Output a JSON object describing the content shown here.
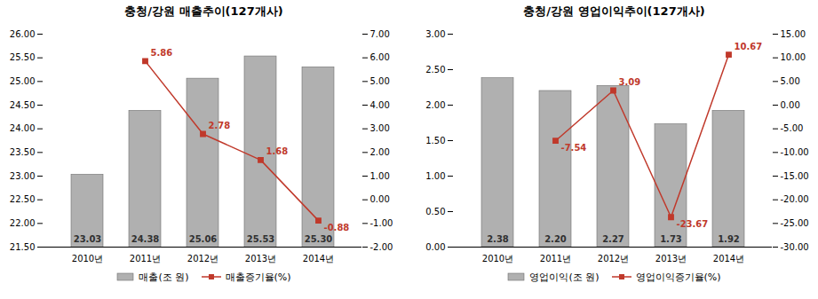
{
  "chart_data": [
    {
      "type": "bar",
      "title": "충청/강원  매출추이(127개사)",
      "categories": [
        "2010년",
        "2011년",
        "2012년",
        "2013년",
        "2014년"
      ],
      "series": [
        {
          "name": "매출(조 원)",
          "type": "bar",
          "color": "#b0b0b0",
          "values": [
            23.03,
            24.38,
            25.06,
            25.53,
            25.3
          ],
          "value_labels": [
            "23.03",
            "24.38",
            "25.06",
            "25.53",
            "25.30"
          ]
        },
        {
          "name": "매출증기율(%)",
          "type": "line",
          "axis": "y2",
          "color": "#c0392b",
          "marker": "square",
          "values": [
            null,
            5.86,
            2.78,
            1.68,
            -0.88
          ]
        }
      ],
      "ylim": [
        21.5,
        26.0
      ],
      "yticks": [
        {
          "value": 21.5,
          "label": "21.50"
        },
        {
          "value": 22.0,
          "label": "22.00"
        },
        {
          "value": 22.5,
          "label": "22.50"
        },
        {
          "value": 23.0,
          "label": "23.00"
        },
        {
          "value": 23.5,
          "label": "23.50"
        },
        {
          "value": 24.0,
          "label": "24.00"
        },
        {
          "value": 24.5,
          "label": "24.50"
        },
        {
          "value": 25.0,
          "label": "25.00"
        },
        {
          "value": 25.5,
          "label": "25.50"
        },
        {
          "value": 26.0,
          "label": "26.00"
        }
      ],
      "y2lim": [
        -2.0,
        7.0
      ],
      "y2ticks": [
        {
          "value": -2.0,
          "label": "-2.00"
        },
        {
          "value": -1.0,
          "label": "-1.00"
        },
        {
          "value": 0.0,
          "label": "0.00"
        },
        {
          "value": 1.0,
          "label": "1.00"
        },
        {
          "value": 2.0,
          "label": "2.00"
        },
        {
          "value": 3.0,
          "label": "3.00"
        },
        {
          "value": 4.0,
          "label": "4.00"
        },
        {
          "value": 5.0,
          "label": "5.00"
        },
        {
          "value": 6.0,
          "label": "6.00"
        },
        {
          "value": 7.0,
          "label": "7.00"
        }
      ],
      "data_labels": true,
      "legend": "bottom",
      "grid": false
    },
    {
      "type": "bar",
      "title": "충청/강원  영업이익추이(127개사)",
      "categories": [
        "2010년",
        "2011년",
        "2012년",
        "2013년",
        "2014년"
      ],
      "series": [
        {
          "name": "영업이익(조 원)",
          "type": "bar",
          "color": "#b0b0b0",
          "values": [
            2.38,
            2.2,
            2.27,
            1.73,
            1.92
          ],
          "value_labels": [
            "2.38",
            "2.20",
            "2.27",
            "1.73",
            "1.92"
          ]
        },
        {
          "name": "영업이익증기율(%)",
          "type": "line",
          "axis": "y2",
          "color": "#c0392b",
          "marker": "square",
          "values": [
            null,
            -7.54,
            3.09,
            -23.67,
            10.67
          ]
        }
      ],
      "ylim": [
        0.0,
        3.0
      ],
      "yticks": [
        {
          "value": 0.0,
          "label": "0.00"
        },
        {
          "value": 0.5,
          "label": "0.50"
        },
        {
          "value": 1.0,
          "label": "1.00"
        },
        {
          "value": 1.5,
          "label": "1.50"
        },
        {
          "value": 2.0,
          "label": "2.00"
        },
        {
          "value": 2.5,
          "label": "2.50"
        },
        {
          "value": 3.0,
          "label": "3.00"
        }
      ],
      "y2lim": [
        -30.0,
        15.0
      ],
      "y2ticks": [
        {
          "value": -30.0,
          "label": "-30.00"
        },
        {
          "value": -25.0,
          "label": "-25.00"
        },
        {
          "value": -20.0,
          "label": "-20.00"
        },
        {
          "value": -15.0,
          "label": "-15.00"
        },
        {
          "value": -10.0,
          "label": "-10.00"
        },
        {
          "value": -5.0,
          "label": "-5.00"
        },
        {
          "value": 0.0,
          "label": "0.00"
        },
        {
          "value": 5.0,
          "label": "5.00"
        },
        {
          "value": 10.0,
          "label": "10.00"
        },
        {
          "value": 15.0,
          "label": "15.00"
        }
      ],
      "data_labels": true,
      "legend": "bottom",
      "grid": false
    }
  ]
}
